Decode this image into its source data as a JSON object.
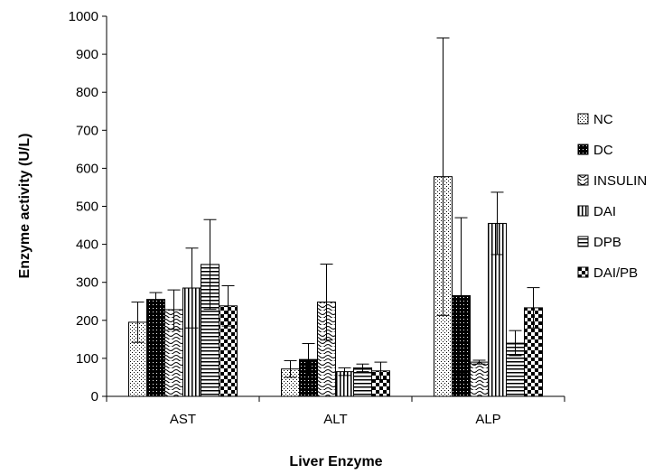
{
  "chart_data": {
    "type": "bar",
    "title": "",
    "xlabel": "Liver Enzyme",
    "ylabel": "Enzyme activity (U/L)",
    "ylim": [
      0,
      1000
    ],
    "yticks": [
      0,
      100,
      200,
      300,
      400,
      500,
      600,
      700,
      800,
      900,
      1000
    ],
    "categories": [
      "AST",
      "ALT",
      "ALP"
    ],
    "legend_position": "right",
    "grid": false,
    "series": [
      {
        "name": "NC",
        "pattern": "dots",
        "values": [
          195,
          72,
          578
        ],
        "errors": [
          53,
          22,
          365
        ]
      },
      {
        "name": "DC",
        "pattern": "dense-dots-dark",
        "values": [
          255,
          97,
          265
        ],
        "errors": [
          18,
          42,
          205
        ]
      },
      {
        "name": "INSULIN",
        "pattern": "waves",
        "values": [
          228,
          248,
          90
        ],
        "errors": [
          52,
          100,
          5
        ]
      },
      {
        "name": "DAI",
        "pattern": "vertical-lines",
        "values": [
          285,
          65,
          455
        ],
        "errors": [
          105,
          10,
          82
        ]
      },
      {
        "name": "DPB",
        "pattern": "horizontal-lines",
        "values": [
          347,
          75,
          140
        ],
        "errors": [
          118,
          10,
          33
        ]
      },
      {
        "name": "DAI/PB",
        "pattern": "checker",
        "values": [
          238,
          67,
          233
        ],
        "errors": [
          53,
          23,
          53
        ]
      }
    ]
  }
}
